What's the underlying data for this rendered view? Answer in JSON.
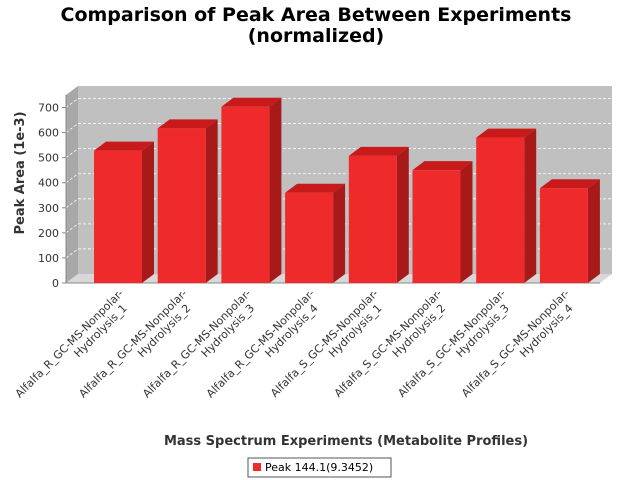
{
  "chart_data": {
    "type": "bar",
    "style": "3d",
    "title_lines": [
      "Comparison of Peak Area Between Experiments",
      "(normalized)"
    ],
    "xlabel": "Mass Spectrum Experiments (Metabolite Profiles)",
    "ylabel": "Peak Area (1e-3)",
    "ylim": [
      0,
      750
    ],
    "yticks": [
      0,
      100,
      200,
      300,
      400,
      500,
      600,
      700
    ],
    "grid": true,
    "legend_position": "bottom",
    "categories": [
      [
        "Alfalfa_R_GC-MS-Nonpolar-",
        "Hydrolysis_1"
      ],
      [
        "Alfalfa_R_GC-MS-Nonpolar-",
        "Hydrolysis_2"
      ],
      [
        "Alfalfa_R_GC-MS-Nonpolar-",
        "Hydrolysis_3"
      ],
      [
        "Alfalfa_R_GC-MS-Nonpolar-",
        "Hydrolysis_4"
      ],
      [
        "Alfalfa_S_GC-MS-Nonpolar-",
        "Hydrolysis_1"
      ],
      [
        "Alfalfa_S_GC-MS-Nonpolar-",
        "Hydrolysis_2"
      ],
      [
        "Alfalfa_S_GC-MS-Nonpolar-",
        "Hydrolysis_3"
      ],
      [
        "Alfalfa_S_GC-MS-Nonpolar-",
        "Hydrolysis_4"
      ]
    ],
    "series": [
      {
        "name": "Peak 144.1(9.3452)",
        "color": "#ee2a2a",
        "values": [
          528,
          617,
          703,
          360,
          507,
          450,
          580,
          378
        ]
      }
    ],
    "colors": {
      "plot_back": "#c0c0c0",
      "plot_wall": "#a8a8a8",
      "bar_front": "#ee2a2a",
      "bar_top": "#c81a1a",
      "bar_side": "#a81a1a",
      "grid": "#ffffff"
    }
  }
}
